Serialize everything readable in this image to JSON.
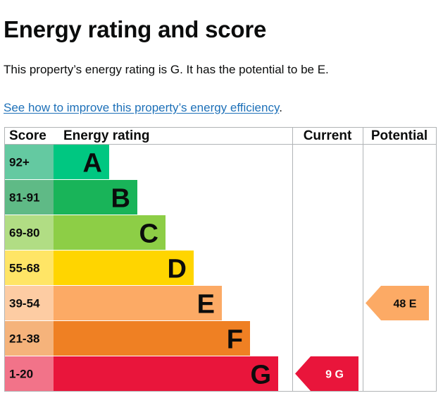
{
  "page": {
    "title": "Energy rating and score",
    "summary": "This property’s energy rating is G. It has the potential to be E.",
    "improve_link": "See how to improve this property’s energy efficiency",
    "improve_suffix": "."
  },
  "chart_data": {
    "type": "bar",
    "title": "Energy rating and score",
    "columns": [
      "Score",
      "Energy rating",
      "Current",
      "Potential"
    ],
    "bands": [
      {
        "band": "A",
        "range": "92+",
        "color": "#00c781",
        "score_color": "#64c9a1"
      },
      {
        "band": "B",
        "range": "81-91",
        "color": "#19b459",
        "score_color": "#5fba86"
      },
      {
        "band": "C",
        "range": "69-80",
        "color": "#8dce46",
        "score_color": "#b1dd84"
      },
      {
        "band": "D",
        "range": "55-68",
        "color": "#ffd500",
        "score_color": "#ffe566"
      },
      {
        "band": "E",
        "range": "39-54",
        "color": "#fcaa65",
        "score_color": "#fdcca3"
      },
      {
        "band": "F",
        "range": "21-38",
        "color": "#ef8023",
        "score_color": "#f5b37b"
      },
      {
        "band": "G",
        "range": "1-20",
        "color": "#e9153b",
        "score_color": "#f27389"
      }
    ],
    "current": {
      "score": 9,
      "band": "G",
      "label": "9 G",
      "color": "#e9153b",
      "text_color": "#ffffff"
    },
    "potential": {
      "score": 48,
      "band": "E",
      "label": "48 E",
      "color": "#fcaa65",
      "text_color": "#0b0c0c"
    }
  }
}
